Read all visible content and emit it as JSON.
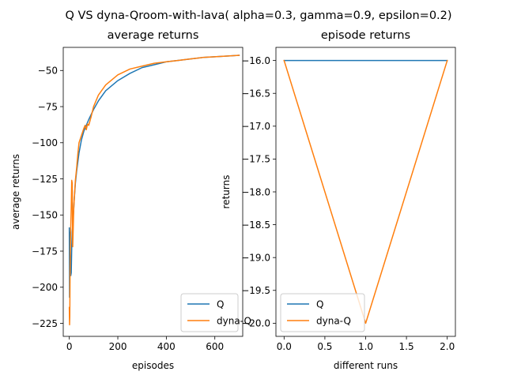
{
  "suptitle": "Q VS dyna-Qroom-with-lava( alpha=0.3, gamma=0.9, epsilon=0.2)",
  "colors": {
    "Q": "#1f77b4",
    "dyna_Q": "#ff7f0e"
  },
  "chart_data": [
    {
      "type": "line",
      "title": "average returns",
      "xlabel": "episodes",
      "ylabel": "average returns",
      "xlim": [
        -25,
        715
      ],
      "ylim": [
        -234,
        -34
      ],
      "xticks": [
        0,
        200,
        400,
        600
      ],
      "xtick_labels": [
        "0",
        "200",
        "400",
        "600"
      ],
      "yticks": [
        -50,
        -75,
        -100,
        -125,
        -150,
        -175,
        -200,
        -225
      ],
      "ytick_labels": [
        "−50",
        "−75",
        "−100",
        "−125",
        "−150",
        "−175",
        "−200",
        "−225"
      ],
      "grid": false,
      "legend_position": "lower-right",
      "series": [
        {
          "name": "Q",
          "color": "#1f77b4",
          "x": [
            0,
            1,
            2,
            3,
            4,
            5,
            6,
            8,
            10,
            12,
            15,
            20,
            25,
            30,
            40,
            50,
            60,
            70,
            80,
            100,
            120,
            150,
            200,
            250,
            300,
            350,
            400,
            450,
            500,
            550,
            600,
            650,
            700
          ],
          "y": [
            -159,
            -207,
            -170,
            -162,
            -175,
            -185,
            -192,
            -190,
            -172,
            -162,
            -155,
            -140,
            -128,
            -120,
            -107,
            -98,
            -92,
            -88,
            -84,
            -77,
            -71,
            -64,
            -57,
            -52,
            -48,
            -46,
            -44,
            -43,
            -42,
            -41,
            -40.5,
            -40,
            -39.5
          ]
        },
        {
          "name": "dyna-Q",
          "color": "#ff7f0e",
          "x": [
            0,
            1,
            2,
            3,
            4,
            5,
            6,
            8,
            10,
            12,
            14,
            16,
            18,
            20,
            25,
            30,
            35,
            40,
            50,
            60,
            65,
            70,
            75,
            80,
            90,
            100,
            120,
            150,
            200,
            250,
            300,
            350,
            400,
            450,
            500,
            550,
            600,
            650,
            700
          ],
          "y": [
            -214,
            -226,
            -220,
            -190,
            -175,
            -165,
            -158,
            -145,
            -126,
            -128,
            -172,
            -160,
            -147,
            -140,
            -126,
            -118,
            -108,
            -100,
            -95,
            -90,
            -88,
            -91,
            -87,
            -88,
            -82,
            -75,
            -67,
            -60,
            -53,
            -49,
            -47,
            -45,
            -44,
            -43,
            -42,
            -41,
            -40.5,
            -40,
            -39.5
          ]
        }
      ]
    },
    {
      "type": "line",
      "title": "episode returns",
      "xlabel": "different runs",
      "ylabel": "returns",
      "xlim": [
        -0.1,
        2.1
      ],
      "ylim": [
        -20.2,
        -15.8
      ],
      "xticks": [
        0,
        0.5,
        1,
        1.5,
        2
      ],
      "xtick_labels": [
        "0.0",
        "0.5",
        "1.0",
        "1.5",
        "2.0"
      ],
      "yticks": [
        -16,
        -16.5,
        -17,
        -17.5,
        -18,
        -18.5,
        -19,
        -19.5,
        -20
      ],
      "ytick_labels": [
        "−16.0",
        "−16.5",
        "−17.0",
        "−17.5",
        "−18.0",
        "−18.5",
        "−19.0",
        "−19.5",
        "−20.0"
      ],
      "grid": false,
      "legend_position": "lower-left",
      "series": [
        {
          "name": "Q",
          "color": "#1f77b4",
          "x": [
            0,
            1,
            2
          ],
          "y": [
            -16,
            -16,
            -16
          ]
        },
        {
          "name": "dyna-Q",
          "color": "#ff7f0e",
          "x": [
            0,
            1,
            2
          ],
          "y": [
            -16,
            -20,
            -16
          ]
        }
      ]
    }
  ]
}
